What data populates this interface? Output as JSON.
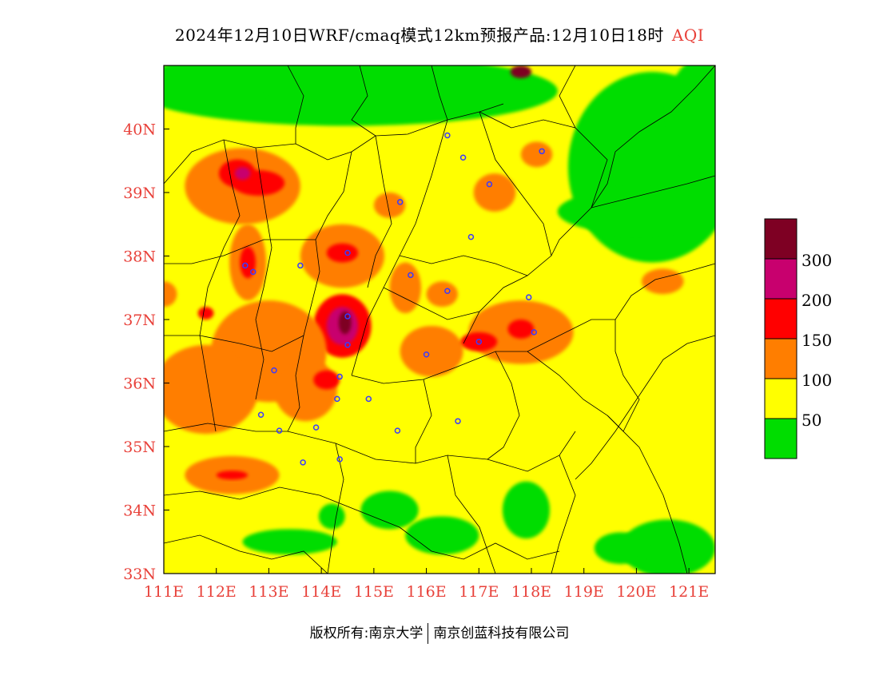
{
  "title": {
    "main": "2024年12月10日WRF/cmaq模式12km预报产品:12月10日18时",
    "suffix": "AQI"
  },
  "colors": {
    "good": "#00dd00",
    "moderate": "#ffff00",
    "usg": "#ff7e00",
    "unhealthy": "#ff0000",
    "very_unhealthy": "#c8006e",
    "hazardous": "#7e0023",
    "axis_label": "#e8413a",
    "station": "#3a3aff"
  },
  "map": {
    "lon_range": [
      111,
      121.5
    ],
    "lat_range": [
      33,
      41
    ],
    "lon_ticks": [
      "111E",
      "112E",
      "113E",
      "114E",
      "115E",
      "116E",
      "117E",
      "118E",
      "119E",
      "120E",
      "121E"
    ],
    "lat_ticks": [
      "33N",
      "34N",
      "35N",
      "36N",
      "37N",
      "38N",
      "39N",
      "40N"
    ],
    "background_level": "moderate",
    "hotspots": [
      {
        "lon": 112.5,
        "lat": 39.1,
        "rx": 1.1,
        "ry": 0.6,
        "level": "usg"
      },
      {
        "lon": 112.4,
        "lat": 39.3,
        "rx": 0.35,
        "ry": 0.22,
        "level": "unhealthy"
      },
      {
        "lon": 112.8,
        "lat": 39.15,
        "rx": 0.5,
        "ry": 0.2,
        "level": "unhealthy"
      },
      {
        "lon": 112.5,
        "lat": 39.3,
        "rx": 0.15,
        "ry": 0.1,
        "level": "very_unhealthy"
      },
      {
        "lon": 114.4,
        "lat": 38.0,
        "rx": 0.8,
        "ry": 0.5,
        "level": "usg"
      },
      {
        "lon": 114.4,
        "lat": 38.05,
        "rx": 0.3,
        "ry": 0.15,
        "level": "unhealthy"
      },
      {
        "lon": 114.4,
        "lat": 36.9,
        "rx": 0.55,
        "ry": 0.5,
        "level": "unhealthy"
      },
      {
        "lon": 114.4,
        "lat": 36.9,
        "rx": 0.3,
        "ry": 0.3,
        "level": "very_unhealthy"
      },
      {
        "lon": 114.45,
        "lat": 36.95,
        "rx": 0.12,
        "ry": 0.18,
        "level": "hazardous"
      },
      {
        "lon": 113.0,
        "lat": 36.5,
        "rx": 1.1,
        "ry": 0.8,
        "level": "usg"
      },
      {
        "lon": 113.7,
        "lat": 35.9,
        "rx": 0.6,
        "ry": 0.5,
        "level": "usg"
      },
      {
        "lon": 114.1,
        "lat": 36.05,
        "rx": 0.25,
        "ry": 0.15,
        "level": "unhealthy"
      },
      {
        "lon": 111.8,
        "lat": 35.9,
        "rx": 1.0,
        "ry": 0.7,
        "level": "usg"
      },
      {
        "lon": 116.1,
        "lat": 36.5,
        "rx": 0.6,
        "ry": 0.4,
        "level": "usg"
      },
      {
        "lon": 117.8,
        "lat": 36.8,
        "rx": 1.0,
        "ry": 0.5,
        "level": "usg"
      },
      {
        "lon": 117.0,
        "lat": 36.65,
        "rx": 0.35,
        "ry": 0.15,
        "level": "unhealthy"
      },
      {
        "lon": 117.8,
        "lat": 36.85,
        "rx": 0.25,
        "ry": 0.15,
        "level": "unhealthy"
      },
      {
        "lon": 112.6,
        "lat": 37.9,
        "rx": 0.35,
        "ry": 0.6,
        "level": "usg"
      },
      {
        "lon": 112.6,
        "lat": 37.9,
        "rx": 0.15,
        "ry": 0.25,
        "level": "unhealthy"
      },
      {
        "lon": 112.3,
        "lat": 34.55,
        "rx": 0.9,
        "ry": 0.3,
        "level": "usg"
      },
      {
        "lon": 112.3,
        "lat": 34.55,
        "rx": 0.3,
        "ry": 0.07,
        "level": "unhealthy"
      },
      {
        "lon": 115.3,
        "lat": 38.8,
        "rx": 0.3,
        "ry": 0.2,
        "level": "usg"
      },
      {
        "lon": 117.3,
        "lat": 39.0,
        "rx": 0.4,
        "ry": 0.3,
        "level": "usg"
      },
      {
        "lon": 118.1,
        "lat": 39.6,
        "rx": 0.3,
        "ry": 0.2,
        "level": "usg"
      },
      {
        "lon": 117.8,
        "lat": 40.9,
        "rx": 0.2,
        "ry": 0.1,
        "level": "hazardous"
      },
      {
        "lon": 120.5,
        "lat": 37.6,
        "rx": 0.4,
        "ry": 0.2,
        "level": "usg"
      },
      {
        "lon": 116.3,
        "lat": 37.4,
        "rx": 0.3,
        "ry": 0.2,
        "level": "usg"
      },
      {
        "lon": 115.6,
        "lat": 37.5,
        "rx": 0.3,
        "ry": 0.4,
        "level": "usg"
      },
      {
        "lon": 111.0,
        "lat": 37.4,
        "rx": 0.25,
        "ry": 0.2,
        "level": "usg"
      },
      {
        "lon": 111.8,
        "lat": 37.1,
        "rx": 0.15,
        "ry": 0.1,
        "level": "unhealthy"
      }
    ],
    "green_zones": [
      {
        "lon": 114.5,
        "lat": 40.6,
        "rx": 4.0,
        "ry": 0.55
      },
      {
        "lon": 111.8,
        "lat": 40.7,
        "rx": 1.2,
        "ry": 0.4
      },
      {
        "lon": 120.3,
        "lat": 39.4,
        "rx": 1.6,
        "ry": 1.5
      },
      {
        "lon": 120.0,
        "lat": 38.7,
        "rx": 1.5,
        "ry": 0.35
      },
      {
        "lon": 121.2,
        "lat": 40.3,
        "rx": 0.6,
        "ry": 0.8
      },
      {
        "lon": 115.3,
        "lat": 34.0,
        "rx": 0.55,
        "ry": 0.3
      },
      {
        "lon": 116.3,
        "lat": 33.6,
        "rx": 0.7,
        "ry": 0.3
      },
      {
        "lon": 113.4,
        "lat": 33.5,
        "rx": 0.9,
        "ry": 0.2
      },
      {
        "lon": 117.9,
        "lat": 34.0,
        "rx": 0.45,
        "ry": 0.45
      },
      {
        "lon": 120.6,
        "lat": 33.4,
        "rx": 0.9,
        "ry": 0.45
      },
      {
        "lon": 119.7,
        "lat": 33.4,
        "rx": 0.5,
        "ry": 0.25
      },
      {
        "lon": 114.2,
        "lat": 33.9,
        "rx": 0.25,
        "ry": 0.2
      }
    ],
    "stations": [
      {
        "lon": 116.4,
        "lat": 39.9
      },
      {
        "lon": 116.7,
        "lat": 39.55
      },
      {
        "lon": 117.2,
        "lat": 39.13
      },
      {
        "lon": 118.2,
        "lat": 39.65
      },
      {
        "lon": 115.5,
        "lat": 38.85
      },
      {
        "lon": 116.85,
        "lat": 38.3
      },
      {
        "lon": 114.5,
        "lat": 38.05
      },
      {
        "lon": 112.55,
        "lat": 37.85
      },
      {
        "lon": 112.7,
        "lat": 37.75
      },
      {
        "lon": 113.6,
        "lat": 37.85
      },
      {
        "lon": 115.7,
        "lat": 37.7
      },
      {
        "lon": 116.4,
        "lat": 37.45
      },
      {
        "lon": 114.5,
        "lat": 37.05
      },
      {
        "lon": 114.5,
        "lat": 36.6
      },
      {
        "lon": 117.0,
        "lat": 36.65
      },
      {
        "lon": 118.05,
        "lat": 36.8
      },
      {
        "lon": 117.95,
        "lat": 37.35
      },
      {
        "lon": 116.0,
        "lat": 36.45
      },
      {
        "lon": 113.1,
        "lat": 36.2
      },
      {
        "lon": 114.35,
        "lat": 36.1
      },
      {
        "lon": 114.3,
        "lat": 35.75
      },
      {
        "lon": 114.9,
        "lat": 35.75
      },
      {
        "lon": 112.85,
        "lat": 35.5
      },
      {
        "lon": 113.2,
        "lat": 35.25
      },
      {
        "lon": 113.9,
        "lat": 35.3
      },
      {
        "lon": 115.45,
        "lat": 35.25
      },
      {
        "lon": 116.6,
        "lat": 35.4
      },
      {
        "lon": 114.35,
        "lat": 34.8
      },
      {
        "lon": 113.65,
        "lat": 34.75
      }
    ]
  },
  "legend": {
    "labels": [
      "300",
      "200",
      "150",
      "100",
      "50"
    ]
  },
  "credits": {
    "left": "版权所有:南京大学",
    "right": "南京创蓝科技有限公司"
  }
}
